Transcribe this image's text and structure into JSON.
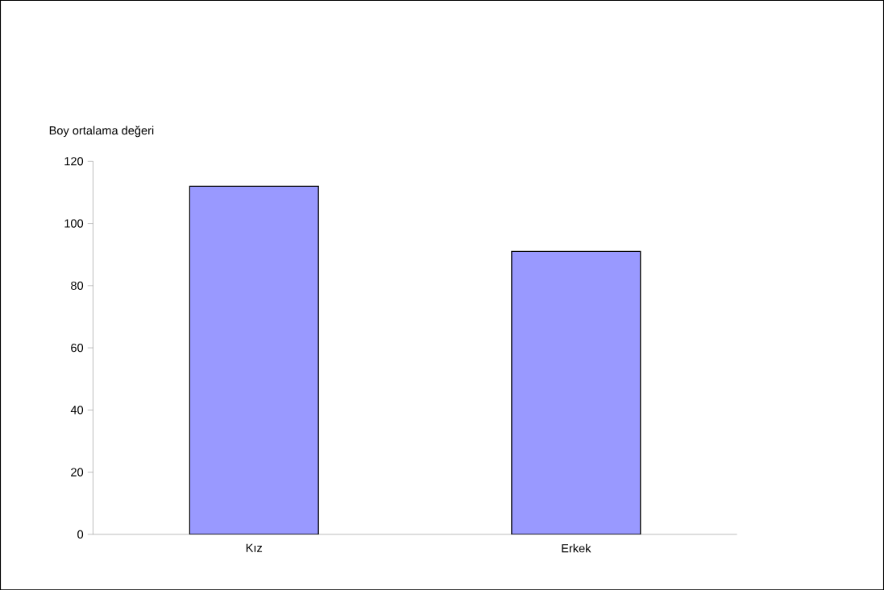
{
  "chart_data": {
    "type": "bar",
    "ylabel": "Boy ortalama değeri",
    "categories": [
      "Kız",
      "Erkek"
    ],
    "values": [
      112,
      91
    ],
    "color": "#9999ff",
    "ylim": [
      0,
      120
    ],
    "yticks": [
      0,
      20,
      40,
      60,
      80,
      100,
      120
    ],
    "grid": false
  }
}
